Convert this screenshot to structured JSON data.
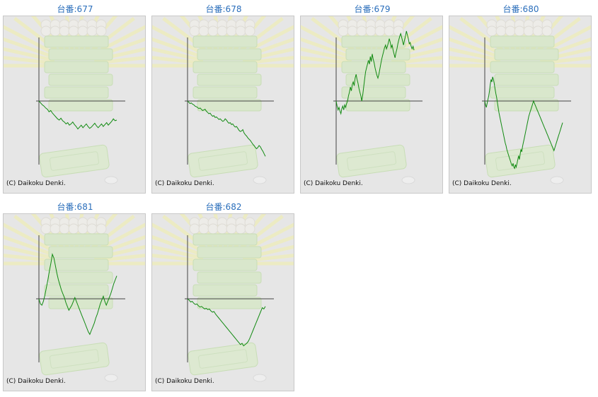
{
  "copyright": "(C) Daikoku Denki.",
  "colors": {
    "line": "#118a11",
    "axis": "#444444",
    "title": "#2a6ebb",
    "panel_bg": "#e6e6e6"
  },
  "machines": [
    {
      "title": "台番:677"
    },
    {
      "title": "台番:678"
    },
    {
      "title": "台番:679"
    },
    {
      "title": "台番:680"
    },
    {
      "title": "台番:681"
    },
    {
      "title": "台番:682"
    }
  ],
  "chart_data": [
    {
      "type": "line",
      "title": "台番:677",
      "xlabel": "",
      "ylabel": "",
      "y": [
        0,
        -3,
        -6,
        -8,
        -11,
        -13,
        -17,
        -15,
        -19,
        -22,
        -25,
        -28,
        -30,
        -27,
        -31,
        -33,
        -36,
        -34,
        -38,
        -36,
        -33,
        -37,
        -40,
        -44,
        -41,
        -38,
        -42,
        -39,
        -36,
        -40,
        -43,
        -41,
        -38,
        -35,
        -39,
        -42,
        -39,
        -36,
        -40,
        -37,
        -34,
        -38,
        -35,
        -32,
        -28,
        -31,
        -30
      ]
    },
    {
      "type": "line",
      "title": "台番:678",
      "xlabel": "",
      "ylabel": "",
      "y": [
        0,
        -2,
        -4,
        -3,
        -5,
        -6,
        -8,
        -9,
        -10,
        -12,
        -11,
        -13,
        -15,
        -14,
        -13,
        -16,
        -18,
        -20,
        -19,
        -22,
        -24,
        -23,
        -26,
        -25,
        -27,
        -29,
        -28,
        -30,
        -32,
        -31,
        -28,
        -30,
        -33,
        -35,
        -34,
        -37,
        -36,
        -39,
        -41,
        -40,
        -43,
        -46,
        -48,
        -47,
        -45,
        -50,
        -53,
        -55,
        -58,
        -60,
        -62,
        -65,
        -68,
        -70,
        -73,
        -75,
        -73,
        -70,
        -72,
        -76,
        -79,
        -83,
        -87
      ]
    },
    {
      "type": "line",
      "title": "台番:679",
      "xlabel": "",
      "ylabel": "",
      "y": [
        0,
        -8,
        -14,
        -10,
        -16,
        -20,
        -12,
        -8,
        -14,
        -6,
        -10,
        -4,
        0,
        8,
        14,
        22,
        16,
        26,
        30,
        24,
        36,
        42,
        34,
        28,
        20,
        14,
        8,
        0,
        10,
        22,
        34,
        46,
        52,
        58,
        64,
        58,
        70,
        62,
        74,
        66,
        60,
        52,
        46,
        40,
        36,
        42,
        50,
        58,
        66,
        72,
        78,
        84,
        88,
        82,
        86,
        92,
        98,
        92,
        84,
        88,
        80,
        74,
        68,
        76,
        82,
        90,
        96,
        102,
        106,
        100,
        94,
        88,
        96,
        102,
        110,
        104,
        98,
        90,
        92,
        86,
        82,
        86,
        80
      ]
    },
    {
      "type": "line",
      "title": "台番:680",
      "xlabel": "",
      "ylabel": "",
      "y": [
        0,
        -6,
        -10,
        -4,
        2,
        8,
        16,
        26,
        34,
        30,
        38,
        34,
        28,
        20,
        12,
        6,
        -2,
        -10,
        -18,
        -24,
        -30,
        -36,
        -42,
        -48,
        -54,
        -60,
        -66,
        -70,
        -76,
        -80,
        -84,
        -88,
        -92,
        -96,
        -100,
        -102,
        -98,
        -104,
        -106,
        -100,
        -104,
        -98,
        -92,
        -86,
        -92,
        -84,
        -76,
        -80,
        -72,
        -66,
        -60,
        -54,
        -48,
        -42,
        -36,
        -30,
        -24,
        -20,
        -16,
        -12,
        -8,
        -4,
        0,
        -3,
        -6,
        -9,
        -12,
        -15,
        -18,
        -21,
        -24,
        -27,
        -30,
        -33,
        -36,
        -39,
        -42,
        -45,
        -48,
        -51,
        -54,
        -57,
        -60,
        -63,
        -66,
        -69,
        -72,
        -75,
        -78,
        -74,
        -70,
        -66,
        -62,
        -58,
        -54,
        -50,
        -46,
        -42,
        -38,
        -34
      ]
    },
    {
      "type": "line",
      "title": "台番:681",
      "xlabel": "",
      "ylabel": "",
      "y": [
        0,
        -8,
        -10,
        -4,
        6,
        18,
        30,
        44,
        56,
        70,
        64,
        52,
        40,
        30,
        22,
        14,
        8,
        2,
        -6,
        -12,
        -18,
        -14,
        -10,
        -4,
        2,
        -4,
        -10,
        -16,
        -22,
        -28,
        -34,
        -40,
        -46,
        -52,
        -56,
        -50,
        -44,
        -38,
        -30,
        -24,
        -16,
        -8,
        -2,
        4,
        -4,
        -10,
        -4,
        2,
        8,
        16,
        24,
        30,
        36
      ]
    },
    {
      "type": "line",
      "title": "台番:682",
      "xlabel": "",
      "ylabel": "",
      "y": [
        0,
        -2,
        -5,
        -4,
        -7,
        -9,
        -8,
        -11,
        -13,
        -12,
        -14,
        -16,
        -15,
        -17,
        -16,
        -19,
        -21,
        -20,
        -24,
        -27,
        -30,
        -33,
        -36,
        -39,
        -42,
        -45,
        -48,
        -51,
        -54,
        -57,
        -60,
        -63,
        -66,
        -69,
        -72,
        -70,
        -74,
        -72,
        -70,
        -67,
        -62,
        -56,
        -50,
        -44,
        -38,
        -32,
        -26,
        -20,
        -14,
        -16,
        -12
      ]
    }
  ]
}
